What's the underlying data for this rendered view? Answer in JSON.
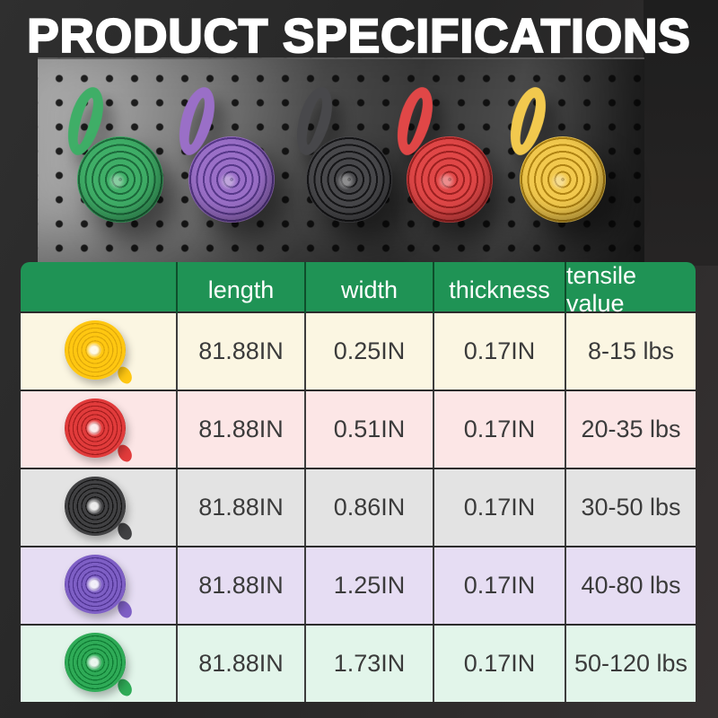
{
  "title": "PRODUCT SPECIFICATIONS",
  "photo": {
    "bands": [
      {
        "name": "green band",
        "color": "#3fae67",
        "groove": "#1d6b3c"
      },
      {
        "name": "purple band",
        "color": "#9a6fc7",
        "groove": "#57388a"
      },
      {
        "name": "black band",
        "color": "#48484b",
        "groove": "#161618"
      },
      {
        "name": "red band",
        "color": "#e04747",
        "groove": "#9c2121"
      },
      {
        "name": "yellow band",
        "color": "#f2c94e",
        "groove": "#b08414"
      }
    ]
  },
  "table": {
    "header": {
      "bg": "#1f9355",
      "labels": [
        "length",
        "width",
        "thickness",
        "tensile value"
      ]
    },
    "rows": [
      {
        "band": "yellow",
        "band_color": "#ffc711",
        "band_groove": "#dda70a",
        "bg": "#fbf6e2",
        "length": "81.88IN",
        "width": "0.25IN",
        "thickness": "0.17IN",
        "tensile": "8-15 lbs"
      },
      {
        "band": "red",
        "band_color": "#e13b3b",
        "band_groove": "#a31d1d",
        "bg": "#fce6e6",
        "length": "81.88IN",
        "width": "0.51IN",
        "thickness": "0.17IN",
        "tensile": "20-35 lbs"
      },
      {
        "band": "black",
        "band_color": "#414143",
        "band_groove": "#141414",
        "bg": "#e3e3e3",
        "length": "81.88IN",
        "width": "0.86IN",
        "thickness": "0.17IN",
        "tensile": "30-50 lbs"
      },
      {
        "band": "purple",
        "band_color": "#7e5fc5",
        "band_groove": "#4f3391",
        "bg": "#e6ddf3",
        "length": "81.88IN",
        "width": "1.25IN",
        "thickness": "0.17IN",
        "tensile": "40-80 lbs"
      },
      {
        "band": "green",
        "band_color": "#2fab57",
        "band_groove": "#0f7a33",
        "bg": "#e2f5ea",
        "length": "81.88IN",
        "width": "1.73IN",
        "thickness": "0.17IN",
        "tensile": "50-120 lbs"
      }
    ]
  }
}
